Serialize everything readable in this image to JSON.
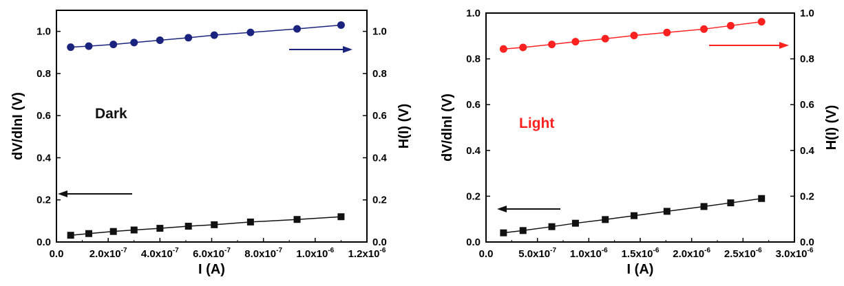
{
  "chart_data": [
    {
      "type": "scatter",
      "id": "dark",
      "annotation": "Dark",
      "xlabel": "I (A)",
      "ylabel": "dV/dlnI (V)",
      "y2label": "H(I) (V)",
      "xlim": [
        0,
        1.2e-06
      ],
      "ylim": [
        0,
        1.1
      ],
      "y2lim": [
        0,
        1.1
      ],
      "x_ticks": [
        0,
        2e-07,
        4e-07,
        6e-07,
        8e-07,
        1e-06,
        1.2e-06
      ],
      "x_tick_labels": [
        "0.0",
        "2.0x10",
        "4.0x10",
        "6.0x10",
        "8.0x10",
        "1.0x10",
        "1.2x10"
      ],
      "x_tick_exps": [
        "",
        "-7",
        "-7",
        "-7",
        "-7",
        "-6",
        "-6"
      ],
      "y_ticks": [
        0,
        0.2,
        0.4,
        0.6,
        0.8,
        1.0
      ],
      "y_tick_labels": [
        "0.0",
        "0.2",
        "0.4",
        "0.6",
        "0.8",
        "1.0"
      ],
      "y2_tick_labels": [
        "0.0",
        "0.2",
        "0.4",
        "0.6",
        "0.8",
        "1.0"
      ],
      "series": [
        {
          "axis": "left",
          "color": "#111111",
          "marker": "square",
          "x": [
            5.5e-08,
            1.25e-07,
            2.2e-07,
            3e-07,
            4e-07,
            5.1e-07,
            6.1e-07,
            7.5e-07,
            9.3e-07,
            1.1e-06
          ],
          "y": [
            0.032,
            0.04,
            0.05,
            0.057,
            0.065,
            0.075,
            0.082,
            0.095,
            0.107,
            0.12
          ]
        },
        {
          "axis": "right",
          "color": "#1a237e",
          "marker": "circle",
          "x": [
            5.5e-08,
            1.25e-07,
            2.2e-07,
            3e-07,
            4e-07,
            5.1e-07,
            6.1e-07,
            7.5e-07,
            9.3e-07,
            1.1e-06
          ],
          "y": [
            0.925,
            0.93,
            0.938,
            0.947,
            0.958,
            0.97,
            0.982,
            0.995,
            1.012,
            1.03
          ]
        }
      ],
      "arrows": [
        {
          "direction": "right",
          "color": "#1a237e"
        },
        {
          "direction": "left",
          "color": "#111111"
        }
      ],
      "annotation_color": "#111111",
      "grid": false
    },
    {
      "type": "scatter",
      "id": "light",
      "annotation": "Light",
      "xlabel": "I (A)",
      "ylabel": "dV/dlnI (V)",
      "y2label": "H(I) (V)",
      "xlim": [
        0,
        3e-06
      ],
      "ylim": [
        0,
        1.0
      ],
      "y2lim": [
        0,
        1.0
      ],
      "x_ticks": [
        0,
        5e-07,
        1e-06,
        1.5e-06,
        2e-06,
        2.5e-06,
        3e-06
      ],
      "x_tick_labels": [
        "0.0",
        "5.0x10",
        "1.0x10",
        "1.5x10",
        "2.0x10",
        "2.5x10",
        "3.0x10"
      ],
      "x_tick_exps": [
        "",
        "-7",
        "-6",
        "-6",
        "-6",
        "-6",
        "-6"
      ],
      "y_ticks": [
        0,
        0.2,
        0.4,
        0.6,
        0.8,
        1.0
      ],
      "y_tick_labels": [
        "0.0",
        "0.2",
        "0.4",
        "0.6",
        "0.8",
        "1.0"
      ],
      "y2_tick_labels": [
        "0.0",
        "0.2",
        "0.4",
        "0.6",
        "0.8",
        "1.0"
      ],
      "series": [
        {
          "axis": "left",
          "color": "#111111",
          "marker": "square",
          "x": [
            1.7e-07,
            3.6e-07,
            6.4e-07,
            8.7e-07,
            1.16e-06,
            1.44e-06,
            1.76e-06,
            2.12e-06,
            2.38e-06,
            2.68e-06
          ],
          "y": [
            0.04,
            0.05,
            0.067,
            0.082,
            0.098,
            0.115,
            0.134,
            0.155,
            0.171,
            0.19
          ]
        },
        {
          "axis": "right",
          "color": "#ff2020",
          "marker": "circle",
          "x": [
            1.7e-07,
            3.6e-07,
            6.4e-07,
            8.7e-07,
            1.16e-06,
            1.44e-06,
            1.76e-06,
            2.12e-06,
            2.38e-06,
            2.68e-06
          ],
          "y": [
            0.843,
            0.85,
            0.863,
            0.875,
            0.888,
            0.902,
            0.915,
            0.93,
            0.945,
            0.962
          ]
        }
      ],
      "arrows": [
        {
          "direction": "right",
          "color": "#ff2020"
        },
        {
          "direction": "left",
          "color": "#111111"
        }
      ],
      "annotation_color": "#ff2020",
      "grid": false
    }
  ]
}
